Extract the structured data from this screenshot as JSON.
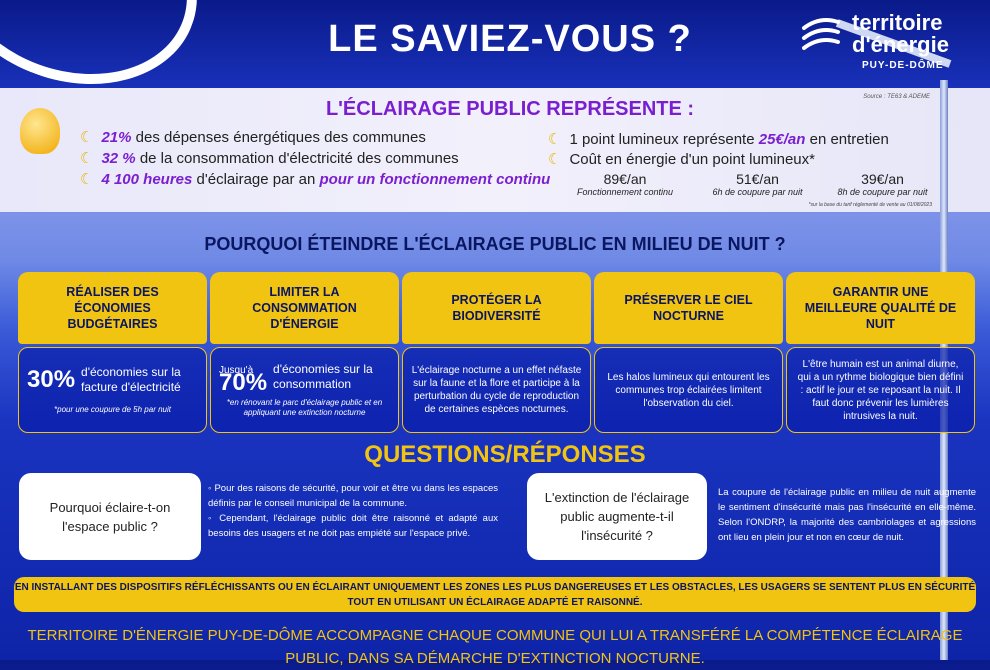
{
  "title": "LE SAVIEZ-VOUS ?",
  "logo": {
    "line1": "territoire",
    "line2": "d'énergie",
    "line3": "PUY-DE-DÔME"
  },
  "panel": {
    "heading": "L'ÉCLAIRAGE PUBLIC REPRÉSENTE :",
    "source": "Source : TE63 & ADEME",
    "left": [
      {
        "hl": "21%",
        "text": " des dépenses énergétiques des communes"
      },
      {
        "hl": "32 %",
        "text": " de la consommation d'électricité des communes"
      },
      {
        "hl": "4 100 heures",
        "text": " d'éclairage par an ",
        "hl2": "pour un fonctionnement continu"
      }
    ],
    "right": [
      {
        "pre": "1 point lumineux représente ",
        "hl": "25€/an",
        "text": " en entretien"
      },
      {
        "pre": "Coût en énergie d'un point lumineux*"
      }
    ],
    "costs": [
      {
        "value": "89€/an",
        "desc": "Fonctionnement continu"
      },
      {
        "value": "51€/an",
        "desc": "6h de coupure par nuit"
      },
      {
        "value": "39€/an",
        "desc": "8h de coupure par nuit"
      }
    ],
    "footnote": "*sur la base du tarif réglementé de vente au 01/08/2023"
  },
  "why": {
    "heading": "POURQUOI ÉTEINDRE L'ÉCLAIRAGE PUBLIC EN MILIEU DE NUIT ?",
    "columns": [
      {
        "title": "RÉALISER DES ÉCONOMIES BUDGÉTAIRES",
        "pre": "",
        "big": "30%",
        "text": "d'économies sur la facture d'électricité",
        "note": "*pour une coupure de 5h par nuit"
      },
      {
        "title": "LIMITER LA CONSOMMATION D'ÉNERGIE",
        "pre": "Jusqu'à",
        "big": "70%",
        "text": "d'économies sur la consommation",
        "note": "*en rénovant le parc d'éclairage public et en appliquant une extinction nocturne"
      },
      {
        "title": "PROTÉGER LA BIODIVERSITÉ",
        "body": "L'éclairage nocturne a un effet néfaste sur la faune et la flore et participe à la perturbation du cycle de reproduction de certaines espèces nocturnes."
      },
      {
        "title": "PRÉSERVER LE CIEL NOCTURNE",
        "body": "Les halos lumineux qui entourent les communes trop éclairées limitent l'observation du ciel."
      },
      {
        "title": "GARANTIR UNE MEILLEURE QUALITÉ DE NUIT",
        "body": "L'être humain est un animal diurne, qui a un rythme biologique bien défini : actif le jour et se reposant la nuit. Il faut donc prévenir les lumières intrusives la nuit."
      }
    ]
  },
  "qa": {
    "heading": "QUESTIONS/RÉPONSES",
    "q1": "Pourquoi éclaire-t-on l'espace public ?",
    "a1": [
      "Pour des raisons de sécurité, pour voir et être vu dans les espaces définis par le conseil municipal de la commune.",
      "Cependant, l'éclairage public doit être raisonné et adapté aux besoins des usagers et ne doit pas empiété sur l'espace privé."
    ],
    "q2": "L'extinction de l'éclairage public augmente-t-il l'insécurité ?",
    "a2": "La coupure de l'éclairage public en milieu de nuit augmente le sentiment d'insécurité mais pas l'insécurité en elle-même. Selon l'ONDRP, la majorité des cambriolages et agressions ont lieu en plein jour et non en cœur de nuit."
  },
  "banner": "EN INSTALLANT DES DISPOSITIFS RÉFLÉCHISSANTS OU EN ÉCLAIRANT UNIQUEMENT LES ZONES LES PLUS DANGEREUSES ET LES OBSTACLES, LES USAGERS SE SENTENT PLUS EN SÉCURITÉ TOUT EN UTILISANT UN ÉCLAIRAGE ADAPTÉ ET RAISONNÉ.",
  "bottom": "TERRITOIRE D'ÉNERGIE PUY-DE-DÔME ACCOMPAGNE CHAQUE COMMUNE QUI LUI A TRANSFÉRÉ LA COMPÉTENCE ÉCLAIRAGE PUBLIC, DANS SA DÉMARCHE D'EXTINCTION NOCTURNE.",
  "colors": {
    "yellow": "#f2c412",
    "purple": "#7a1fd0",
    "navy": "#0b1660"
  }
}
